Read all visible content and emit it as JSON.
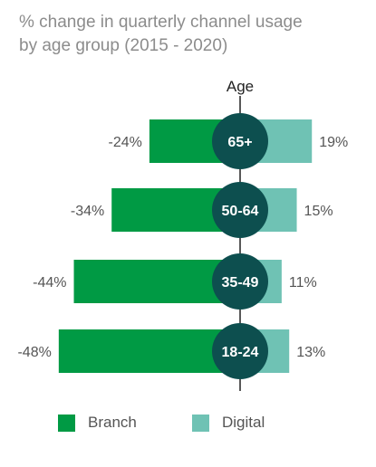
{
  "title_lines": [
    "% change in quarterly channel usage",
    "by age group (2015 - 2020)"
  ],
  "colors": {
    "branch": "#009a44",
    "digital": "#6fc2b4",
    "circle": "#0d4f4f",
    "circle_text": "#ffffff",
    "axis": "#222222",
    "label": "#555555"
  },
  "chart_data": {
    "type": "bar",
    "orientation": "horizontal-diverging",
    "axis_label": "Age",
    "categories": [
      "65+",
      "50-64",
      "35-49",
      "18-24"
    ],
    "series": [
      {
        "name": "Branch",
        "values": [
          -24,
          -34,
          -44,
          -48
        ],
        "labels": [
          "-24%",
          "-34%",
          "-44%",
          "-48%"
        ]
      },
      {
        "name": "Digital",
        "values": [
          19,
          15,
          11,
          13
        ],
        "labels": [
          "19%",
          "15%",
          "11%",
          "13%"
        ]
      }
    ],
    "legend_position": "bottom-left",
    "grid": false
  }
}
